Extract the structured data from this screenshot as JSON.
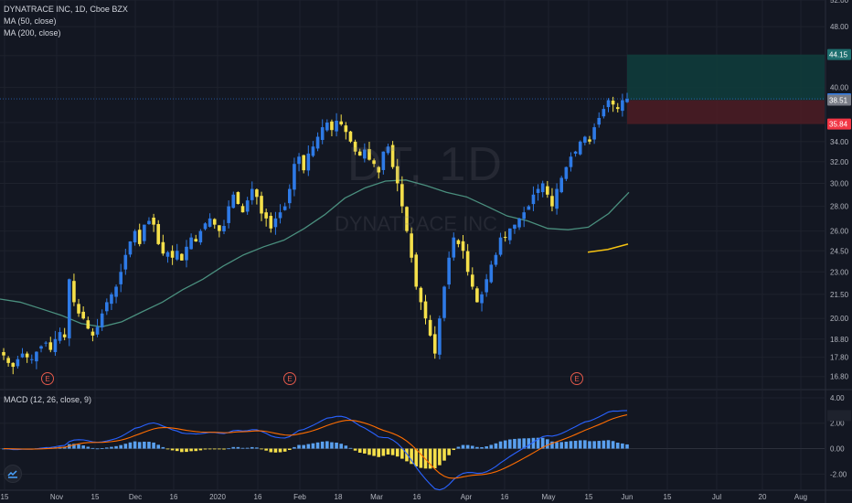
{
  "legend": {
    "symbol_line": "DYNATRACE INC, 1D, Cboe BZX",
    "ma50": "MA (50, close)",
    "ma200": "MA (200, close)",
    "macd": "MACD (12, 26, close, 9)"
  },
  "watermark": {
    "symbol": "DT, 1D",
    "name": "DYNATRACE INC"
  },
  "colors": {
    "background": "#131722",
    "up_candle": "#2e7ae6",
    "down_candle": "#f5e04a",
    "ma50": "#4a8f7e",
    "ma200": "#f5c211",
    "macd_line": "#2962ff",
    "signal_line": "#ff6d00",
    "hist_up": "#5aa0ee",
    "hist_down": "#f5e04a",
    "target_zone": "#0f3b3b",
    "stop_zone": "#4a1c24",
    "earnings": "#e55a4b"
  },
  "chart_data": [
    {
      "type": "candlestick",
      "title": "DYNATRACE INC, 1D, Cboe BZX",
      "scale": "log",
      "ylim": [
        16.2,
        52
      ],
      "y_ticks": [
        "52.00",
        "48.00",
        "44.00",
        "40.00",
        "36.00",
        "34.00",
        "32.00",
        "30.00",
        "28.00",
        "26.00",
        "24.50",
        "23.00",
        "21.50",
        "20.00",
        "18.80",
        "17.80",
        "16.80"
      ],
      "x_ticks": [
        "15",
        "Nov",
        "15",
        "Dec",
        "16",
        "2020",
        "16",
        "Feb",
        "18",
        "Mar",
        "16",
        "Apr",
        "16",
        "May",
        "15",
        "Jun",
        "15",
        "Jul",
        "20",
        "Aug"
      ],
      "series": [
        {
          "name": "MA (50, close)"
        },
        {
          "name": "MA (200, close)"
        }
      ],
      "earnings_markers": [
        "E",
        "E",
        "E"
      ],
      "price_tags": [
        {
          "label": "44.15",
          "value": 44.15,
          "kind": "target"
        },
        {
          "label": "38.66",
          "value": 38.66,
          "kind": "last"
        },
        {
          "label": "38.51",
          "value": 38.51,
          "kind": "entry"
        },
        {
          "label": "35.84",
          "value": 35.84,
          "kind": "stop"
        }
      ],
      "position": {
        "target": 44.15,
        "entry": 38.51,
        "stop": 35.84
      }
    },
    {
      "type": "macd",
      "title": "MACD (12, 26, close, 9)",
      "ylim": [
        -3.2,
        4.5
      ],
      "y_ticks": [
        "4.00",
        "2.00",
        "0.00",
        "-2.00"
      ],
      "series": [
        {
          "name": "MACD"
        },
        {
          "name": "Signal"
        },
        {
          "name": "Histogram"
        }
      ]
    }
  ],
  "keypoints": {
    "close": [
      17.9,
      17.5,
      17.3,
      17.7,
      18.0,
      17.8,
      17.7,
      18.1,
      18.4,
      18.6,
      18.2,
      18.8,
      19.2,
      18.9,
      22.5,
      21.0,
      20.3,
      20.0,
      19.4,
      19.0,
      19.5,
      20.3,
      21.0,
      21.5,
      22.0,
      23.0,
      24.2,
      25.2,
      26.0,
      25.0,
      26.5,
      26.8,
      26.5,
      25.0,
      24.3,
      24.4,
      24.0,
      24.5,
      23.8,
      24.8,
      25.5,
      25.2,
      26.0,
      26.6,
      27.0,
      26.5,
      26.0,
      26.4,
      28.0,
      29.0,
      28.2,
      27.5,
      28.5,
      29.5,
      28.8,
      27.4,
      27.0,
      26.2,
      27.0,
      27.5,
      28.0,
      29.5,
      31.8,
      32.5,
      31.2,
      32.8,
      33.5,
      34.5,
      35.5,
      36.0,
      35.2,
      36.2,
      35.8,
      35.0,
      34.0,
      33.0,
      32.6,
      33.2,
      32.2,
      31.8,
      31.0,
      33.0,
      33.5,
      31.5,
      30.0,
      28.0,
      26.0,
      24.0,
      22.0,
      21.0,
      20.0,
      19.0,
      18.0,
      20.0,
      22.0,
      24.0,
      25.5,
      25.0,
      24.5,
      23.0,
      22.0,
      21.0,
      21.5,
      22.5,
      23.5,
      24.2,
      25.5,
      25.5,
      26.2,
      26.5,
      27.0,
      27.5,
      28.0,
      29.0,
      29.5,
      30.0,
      29.0,
      28.0,
      29.5,
      30.5,
      31.5,
      32.5,
      33.0,
      34.0,
      34.5,
      34.0,
      35.5,
      36.5,
      37.5,
      38.5,
      38.0,
      37.5,
      38.5,
      38.66
    ],
    "ma50": [
      21.2,
      21.0,
      20.6,
      20.2,
      19.7,
      19.5,
      19.8,
      20.4,
      21.0,
      21.8,
      22.5,
      23.4,
      24.2,
      24.8,
      25.3,
      26.2,
      27.3,
      28.7,
      29.6,
      30.2,
      30.3,
      29.8,
      29.2,
      28.8,
      28.0,
      27.2,
      26.8,
      26.2,
      26.1,
      26.3,
      27.4,
      29.2
    ],
    "ma200": [
      24.4,
      24.6,
      25.0
    ]
  }
}
